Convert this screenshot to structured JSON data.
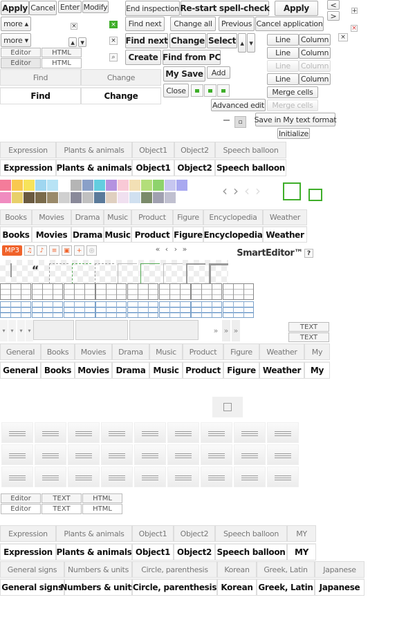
{
  "buttons": {
    "apply": "Apply",
    "cancel": "Cancel",
    "enter": "Enter",
    "modify": "Modify",
    "end_inspection": "End inspection",
    "restart_spell_check": "Re-start spell-check",
    "apply_large": "Apply",
    "more_up": "more ▴",
    "more_down": "more ▾",
    "find_next": "Find next",
    "change_all": "Change all",
    "previous": "Previous",
    "cancel_application": "Cancel application",
    "find_next_bold": "Find next",
    "change": "Change",
    "select": "Select",
    "create": "Create",
    "find_from_pc": "Find from PC",
    "my_save": "My Save",
    "add": "Add",
    "close": "Close",
    "advanced_edit": "Advanced edit",
    "save_my_text_format": "Save in My text format",
    "initialize": "Initialize",
    "prev": "<",
    "next": ">",
    "plus": "+",
    "up": "▴",
    "down": "▾"
  },
  "table_buttons": {
    "line": "Line",
    "column": "Column",
    "merge_cells": "Merge cells"
  },
  "mode_tabs": {
    "editor": "Editor",
    "html": "HTML",
    "text": "TEXT"
  },
  "find_tabs": [
    "Find",
    "Change"
  ],
  "emoticon_tabs": [
    "Expression",
    "Plants & animals",
    "Object1",
    "Object2",
    "Speech balloon"
  ],
  "emoticon_tabs_my": [
    "Expression",
    "Plants & animals",
    "Object1",
    "Object2",
    "Speech balloon",
    "MY"
  ],
  "category_tabs": [
    "Books",
    "Movies",
    "Drama",
    "Music",
    "Product",
    "Figure",
    "Encyclopedia",
    "Weather"
  ],
  "category_tabs2": [
    "General",
    "Books",
    "Movies",
    "Drama",
    "Music",
    "Product",
    "Figure",
    "Weather",
    "My"
  ],
  "special_char_tabs": [
    "General signs",
    "Numbers & units",
    "Circle, parenthesis",
    "Korean",
    "Greek, Latin",
    "Japanese"
  ],
  "media": {
    "mp3": "MP3"
  },
  "pager": [
    "«",
    "‹",
    "›",
    "»"
  ],
  "more_arrows": "»",
  "brand": {
    "name": "SmartEditor™",
    "help": "?"
  },
  "text_label": "TEXT",
  "quote_mark": "“",
  "colors": {
    "accent_orange": "#f0622a",
    "accent_green": "#3fae2a",
    "close_red": "#e03c3c"
  },
  "swatches": [
    "#f47c9a",
    "#f9c84f",
    "#f7e35a",
    "#9fd6f0",
    "#b7e3f5",
    "#ffffff",
    "#b5b5b5",
    "#8aa0c8",
    "#63cde0",
    "#b592e0",
    "#f9c9d6",
    "#f3e0b5",
    "#b3de7a",
    "#8ed36c",
    "#c6c6f0",
    "#a8a8f0",
    "#f08cc0",
    "#e8d06a",
    "#6a5a40",
    "#7a6a4a",
    "#9a8a6a",
    "#d0d0d0",
    "#8a8a9a",
    "#c0c0c0",
    "#5a7a9a",
    "#e0d0c0",
    "#f0e0f0",
    "#d0e0f0",
    "#7a8a6a",
    "#a0a0b0",
    "#c0c0d0",
    "#ffffff"
  ]
}
